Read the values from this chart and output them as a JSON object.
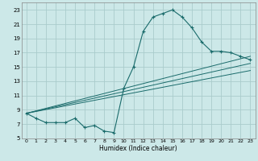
{
  "xlabel": "Humidex (Indice chaleur)",
  "bg_color": "#cce8e8",
  "grid_color": "#aacccc",
  "line_color": "#1a6b6b",
  "xlim": [
    -0.5,
    23.5
  ],
  "ylim": [
    5,
    24
  ],
  "yticks": [
    5,
    7,
    9,
    11,
    13,
    15,
    17,
    19,
    21,
    23
  ],
  "xtick_labels": [
    "0",
    "1",
    "2",
    "3",
    "4",
    "5",
    "6",
    "7",
    "8",
    "9",
    "10",
    "11",
    "12",
    "13",
    "14",
    "15",
    "16",
    "17",
    "18",
    "19",
    "20",
    "21",
    "22",
    "23"
  ],
  "curve1_x": [
    0,
    1,
    2,
    3,
    4,
    5,
    6,
    7,
    8,
    9,
    10,
    11,
    12,
    13,
    14,
    15,
    16,
    17,
    18,
    19,
    20,
    21,
    22,
    23
  ],
  "curve1_y": [
    8.5,
    7.8,
    7.2,
    7.2,
    7.2,
    7.8,
    6.5,
    6.8,
    6.0,
    5.8,
    12.0,
    15.0,
    20.0,
    22.0,
    22.5,
    23.0,
    22.0,
    20.5,
    18.5,
    17.2,
    17.2,
    17.0,
    16.5,
    16.0
  ],
  "line2_x": [
    0,
    23
  ],
  "line2_y": [
    8.5,
    16.5
  ],
  "line3_x": [
    0,
    23
  ],
  "line3_y": [
    8.5,
    15.5
  ],
  "line4_x": [
    0,
    23
  ],
  "line4_y": [
    8.5,
    14.5
  ]
}
